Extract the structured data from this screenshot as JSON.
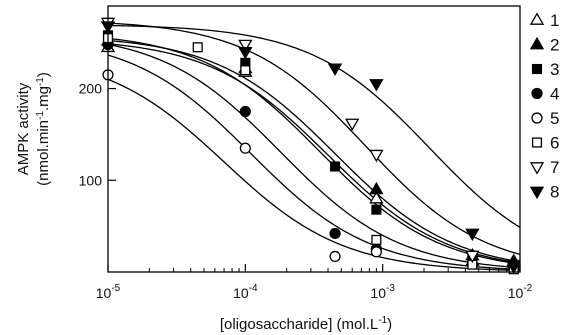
{
  "chart_data": {
    "type": "scatter",
    "title": "",
    "xlabel": "[oligosaccharide] (mol.L",
    "xlabel_sup": "-1",
    "xlabel_suffix": ")",
    "ylabel_line1": "AMPK activity",
    "ylabel_line2_parts": [
      "(nmol.min",
      "-1",
      ".mg",
      "-1",
      ")"
    ],
    "x_scale": "log",
    "xlim": [
      1e-05,
      0.01
    ],
    "ylim": [
      0,
      290
    ],
    "x_ticks": [
      {
        "value": 1e-05,
        "base": "10",
        "exp": "-5"
      },
      {
        "value": 0.0001,
        "base": "10",
        "exp": "-4"
      },
      {
        "value": 0.001,
        "base": "10",
        "exp": "-3"
      },
      {
        "value": 0.01,
        "base": "10",
        "exp": "-2"
      }
    ],
    "y_ticks": [
      100,
      200
    ],
    "grid": false,
    "legend_position": "right",
    "series": [
      {
        "name": "1",
        "marker": "triangle-up-open",
        "points": [
          [
            1e-05,
            245
          ],
          [
            0.0001,
            218
          ],
          [
            0.0009,
            80
          ],
          [
            0.0045,
            18
          ],
          [
            0.009,
            10
          ]
        ],
        "curve": {
          "top": 255,
          "ic50": 0.0004,
          "hill": 1.0
        }
      },
      {
        "name": "2",
        "marker": "triangle-up-filled",
        "points": [
          [
            1e-05,
            252
          ],
          [
            0.0001,
            222
          ],
          [
            0.0009,
            90
          ],
          [
            0.0045,
            12
          ],
          [
            0.009,
            12
          ]
        ],
        "curve": {
          "top": 258,
          "ic50": 0.00045,
          "hill": 1.0
        }
      },
      {
        "name": "3",
        "marker": "square-filled",
        "points": [
          [
            1e-05,
            258
          ],
          [
            0.0001,
            228
          ],
          [
            0.00045,
            115
          ],
          [
            0.0009,
            68
          ],
          [
            0.0045,
            14
          ],
          [
            0.009,
            4
          ]
        ],
        "curve": {
          "top": 262,
          "ic50": 0.00035,
          "hill": 1.0
        }
      },
      {
        "name": "4",
        "marker": "circle-filled",
        "points": [
          [
            1e-05,
            248
          ],
          [
            0.0001,
            175
          ],
          [
            0.00045,
            42
          ],
          [
            0.0009,
            25
          ]
        ],
        "curve": {
          "top": 258,
          "ic50": 0.00011,
          "hill": 1.0
        }
      },
      {
        "name": "5",
        "marker": "circle-open",
        "points": [
          [
            1e-05,
            215
          ],
          [
            0.0001,
            135
          ],
          [
            0.00045,
            17
          ],
          [
            0.0009,
            22
          ]
        ],
        "curve": {
          "top": 240,
          "ic50": 7e-05,
          "hill": 1.0
        }
      },
      {
        "name": "6",
        "marker": "square-open",
        "points": [
          [
            1e-05,
            255
          ],
          [
            4.5e-05,
            245
          ],
          [
            0.0001,
            220
          ],
          [
            0.0009,
            35
          ],
          [
            0.0045,
            8
          ],
          [
            0.009,
            3
          ]
        ],
        "curve": {
          "top": 262,
          "ic50": 0.00018,
          "hill": 1.0
        }
      },
      {
        "name": "7",
        "marker": "triangle-down-open",
        "points": [
          [
            1e-05,
            272
          ],
          [
            0.0001,
            248
          ],
          [
            0.0006,
            162
          ],
          [
            0.0009,
            128
          ],
          [
            0.0045,
            18
          ],
          [
            0.009,
            6
          ]
        ],
        "curve": {
          "top": 275,
          "ic50": 0.00075,
          "hill": 1.0
        }
      },
      {
        "name": "8",
        "marker": "triangle-down-filled",
        "points": [
          [
            1e-05,
            268
          ],
          [
            0.0001,
            240
          ],
          [
            0.00045,
            222
          ],
          [
            0.0009,
            205
          ],
          [
            0.0045,
            42
          ],
          [
            0.009,
            8
          ]
        ],
        "curve": {
          "top": 270,
          "ic50": 0.0022,
          "hill": 1.0
        }
      }
    ]
  }
}
